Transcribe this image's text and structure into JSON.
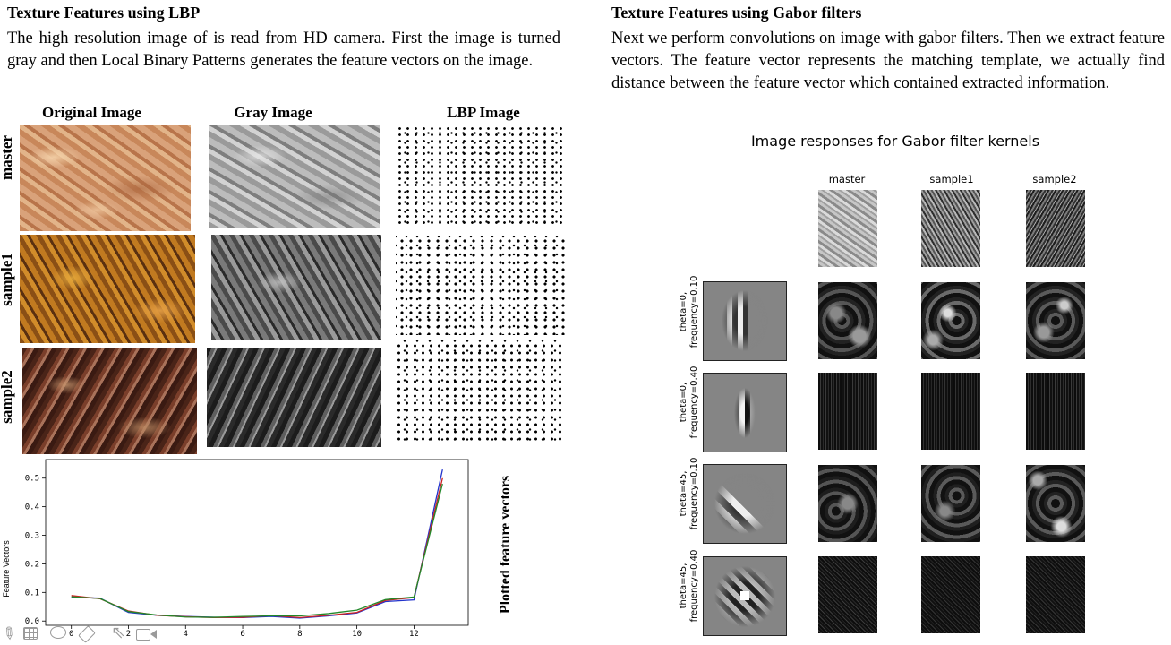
{
  "left": {
    "heading": "Texture Features using LBP",
    "paragraph": "The high resolution image of is read from HD camera. First the image is turned gray and then Local Binary Patterns generates the feature vectors on the image.",
    "column_headers": [
      "Original Image",
      "Gray Image",
      "LBP Image"
    ],
    "row_labels": [
      "master",
      "sample1",
      "sample2"
    ],
    "plot_side_label": "Plotted feature vectors"
  },
  "right": {
    "heading": "Texture Features using Gabor filters",
    "paragraph": "Next we perform convolutions on image with gabor filters. Then we extract feature vectors. The feature vector represents the matching template, we actually find distance between the feature vector which contained extracted information.",
    "figure_title": "Image responses for Gabor filter kernels",
    "column_headers": [
      "master",
      "sample1",
      "sample2"
    ],
    "kernel_labels": [
      "theta=0,\nfrequency=0.10",
      "theta=0,\nfrequency=0.40",
      "theta=45,\nfrequency=0.10",
      "theta=45,\nfrequency=0.40"
    ]
  },
  "colors": {
    "series_blue": "#2233cc",
    "series_red": "#cc2222",
    "series_green": "#22882a"
  },
  "toolbar_icons": [
    "pen-icon",
    "grid-icon",
    "lasso-icon",
    "eraser-icon",
    "pointer-icon",
    "camera-icon"
  ],
  "chart_data": {
    "type": "line",
    "title": "",
    "xlabel": "",
    "ylabel": "Feature Vectors",
    "x": [
      0,
      1,
      2,
      3,
      4,
      5,
      6,
      7,
      8,
      9,
      10,
      11,
      12,
      13
    ],
    "xticks": [
      0,
      2,
      4,
      6,
      8,
      10,
      12
    ],
    "yticks": [
      0.0,
      0.1,
      0.2,
      0.3,
      0.4,
      0.5
    ],
    "xlim": [
      -0.9,
      13.9
    ],
    "ylim": [
      -0.015,
      0.565
    ],
    "series": [
      {
        "color": "#2233cc",
        "values": [
          0.083,
          0.08,
          0.03,
          0.02,
          0.016,
          0.013,
          0.012,
          0.016,
          0.01,
          0.018,
          0.028,
          0.068,
          0.074,
          0.53
        ]
      },
      {
        "color": "#cc2222",
        "values": [
          0.089,
          0.078,
          0.035,
          0.02,
          0.015,
          0.012,
          0.013,
          0.019,
          0.012,
          0.02,
          0.03,
          0.072,
          0.082,
          0.5
        ]
      },
      {
        "color": "#22882a",
        "values": [
          0.085,
          0.079,
          0.033,
          0.021,
          0.014,
          0.013,
          0.016,
          0.018,
          0.018,
          0.026,
          0.038,
          0.075,
          0.084,
          0.48
        ]
      }
    ]
  }
}
